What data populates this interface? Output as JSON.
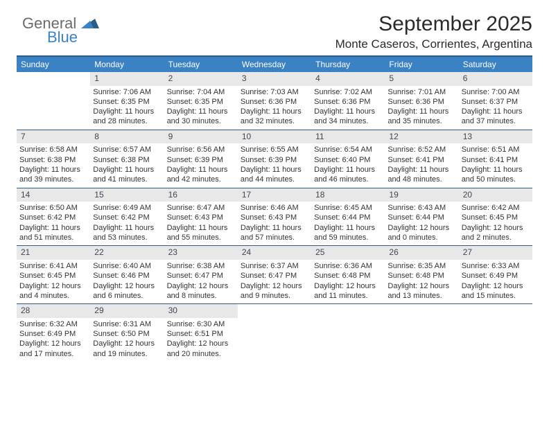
{
  "logo": {
    "general": "General",
    "blue": "Blue"
  },
  "title": "September 2025",
  "location": "Monte Caseros, Corrientes, Argentina",
  "colors": {
    "header_bg": "#3b82c4",
    "header_text": "#ffffff",
    "rule": "#2b5c8a",
    "daynum_bg": "#e8e8e8",
    "body_text": "#333333",
    "logo_gray": "#6b6b6b",
    "logo_blue": "#3b82c4",
    "background": "#ffffff"
  },
  "typography": {
    "title_fontsize": 30,
    "location_fontsize": 17,
    "dow_fontsize": 12,
    "cell_fontsize": 11,
    "font_family": "Arial"
  },
  "dow": [
    "Sunday",
    "Monday",
    "Tuesday",
    "Wednesday",
    "Thursday",
    "Friday",
    "Saturday"
  ],
  "weeks": [
    [
      {
        "n": "",
        "sunrise": "",
        "sunset": "",
        "daylight": ""
      },
      {
        "n": "1",
        "sunrise": "Sunrise: 7:06 AM",
        "sunset": "Sunset: 6:35 PM",
        "daylight": "Daylight: 11 hours and 28 minutes."
      },
      {
        "n": "2",
        "sunrise": "Sunrise: 7:04 AM",
        "sunset": "Sunset: 6:35 PM",
        "daylight": "Daylight: 11 hours and 30 minutes."
      },
      {
        "n": "3",
        "sunrise": "Sunrise: 7:03 AM",
        "sunset": "Sunset: 6:36 PM",
        "daylight": "Daylight: 11 hours and 32 minutes."
      },
      {
        "n": "4",
        "sunrise": "Sunrise: 7:02 AM",
        "sunset": "Sunset: 6:36 PM",
        "daylight": "Daylight: 11 hours and 34 minutes."
      },
      {
        "n": "5",
        "sunrise": "Sunrise: 7:01 AM",
        "sunset": "Sunset: 6:36 PM",
        "daylight": "Daylight: 11 hours and 35 minutes."
      },
      {
        "n": "6",
        "sunrise": "Sunrise: 7:00 AM",
        "sunset": "Sunset: 6:37 PM",
        "daylight": "Daylight: 11 hours and 37 minutes."
      }
    ],
    [
      {
        "n": "7",
        "sunrise": "Sunrise: 6:58 AM",
        "sunset": "Sunset: 6:38 PM",
        "daylight": "Daylight: 11 hours and 39 minutes."
      },
      {
        "n": "8",
        "sunrise": "Sunrise: 6:57 AM",
        "sunset": "Sunset: 6:38 PM",
        "daylight": "Daylight: 11 hours and 41 minutes."
      },
      {
        "n": "9",
        "sunrise": "Sunrise: 6:56 AM",
        "sunset": "Sunset: 6:39 PM",
        "daylight": "Daylight: 11 hours and 42 minutes."
      },
      {
        "n": "10",
        "sunrise": "Sunrise: 6:55 AM",
        "sunset": "Sunset: 6:39 PM",
        "daylight": "Daylight: 11 hours and 44 minutes."
      },
      {
        "n": "11",
        "sunrise": "Sunrise: 6:54 AM",
        "sunset": "Sunset: 6:40 PM",
        "daylight": "Daylight: 11 hours and 46 minutes."
      },
      {
        "n": "12",
        "sunrise": "Sunrise: 6:52 AM",
        "sunset": "Sunset: 6:41 PM",
        "daylight": "Daylight: 11 hours and 48 minutes."
      },
      {
        "n": "13",
        "sunrise": "Sunrise: 6:51 AM",
        "sunset": "Sunset: 6:41 PM",
        "daylight": "Daylight: 11 hours and 50 minutes."
      }
    ],
    [
      {
        "n": "14",
        "sunrise": "Sunrise: 6:50 AM",
        "sunset": "Sunset: 6:42 PM",
        "daylight": "Daylight: 11 hours and 51 minutes."
      },
      {
        "n": "15",
        "sunrise": "Sunrise: 6:49 AM",
        "sunset": "Sunset: 6:42 PM",
        "daylight": "Daylight: 11 hours and 53 minutes."
      },
      {
        "n": "16",
        "sunrise": "Sunrise: 6:47 AM",
        "sunset": "Sunset: 6:43 PM",
        "daylight": "Daylight: 11 hours and 55 minutes."
      },
      {
        "n": "17",
        "sunrise": "Sunrise: 6:46 AM",
        "sunset": "Sunset: 6:43 PM",
        "daylight": "Daylight: 11 hours and 57 minutes."
      },
      {
        "n": "18",
        "sunrise": "Sunrise: 6:45 AM",
        "sunset": "Sunset: 6:44 PM",
        "daylight": "Daylight: 11 hours and 59 minutes."
      },
      {
        "n": "19",
        "sunrise": "Sunrise: 6:43 AM",
        "sunset": "Sunset: 6:44 PM",
        "daylight": "Daylight: 12 hours and 0 minutes."
      },
      {
        "n": "20",
        "sunrise": "Sunrise: 6:42 AM",
        "sunset": "Sunset: 6:45 PM",
        "daylight": "Daylight: 12 hours and 2 minutes."
      }
    ],
    [
      {
        "n": "21",
        "sunrise": "Sunrise: 6:41 AM",
        "sunset": "Sunset: 6:45 PM",
        "daylight": "Daylight: 12 hours and 4 minutes."
      },
      {
        "n": "22",
        "sunrise": "Sunrise: 6:40 AM",
        "sunset": "Sunset: 6:46 PM",
        "daylight": "Daylight: 12 hours and 6 minutes."
      },
      {
        "n": "23",
        "sunrise": "Sunrise: 6:38 AM",
        "sunset": "Sunset: 6:47 PM",
        "daylight": "Daylight: 12 hours and 8 minutes."
      },
      {
        "n": "24",
        "sunrise": "Sunrise: 6:37 AM",
        "sunset": "Sunset: 6:47 PM",
        "daylight": "Daylight: 12 hours and 9 minutes."
      },
      {
        "n": "25",
        "sunrise": "Sunrise: 6:36 AM",
        "sunset": "Sunset: 6:48 PM",
        "daylight": "Daylight: 12 hours and 11 minutes."
      },
      {
        "n": "26",
        "sunrise": "Sunrise: 6:35 AM",
        "sunset": "Sunset: 6:48 PM",
        "daylight": "Daylight: 12 hours and 13 minutes."
      },
      {
        "n": "27",
        "sunrise": "Sunrise: 6:33 AM",
        "sunset": "Sunset: 6:49 PM",
        "daylight": "Daylight: 12 hours and 15 minutes."
      }
    ],
    [
      {
        "n": "28",
        "sunrise": "Sunrise: 6:32 AM",
        "sunset": "Sunset: 6:49 PM",
        "daylight": "Daylight: 12 hours and 17 minutes."
      },
      {
        "n": "29",
        "sunrise": "Sunrise: 6:31 AM",
        "sunset": "Sunset: 6:50 PM",
        "daylight": "Daylight: 12 hours and 19 minutes."
      },
      {
        "n": "30",
        "sunrise": "Sunrise: 6:30 AM",
        "sunset": "Sunset: 6:51 PM",
        "daylight": "Daylight: 12 hours and 20 minutes."
      },
      {
        "n": "",
        "sunrise": "",
        "sunset": "",
        "daylight": ""
      },
      {
        "n": "",
        "sunrise": "",
        "sunset": "",
        "daylight": ""
      },
      {
        "n": "",
        "sunrise": "",
        "sunset": "",
        "daylight": ""
      },
      {
        "n": "",
        "sunrise": "",
        "sunset": "",
        "daylight": ""
      }
    ]
  ]
}
